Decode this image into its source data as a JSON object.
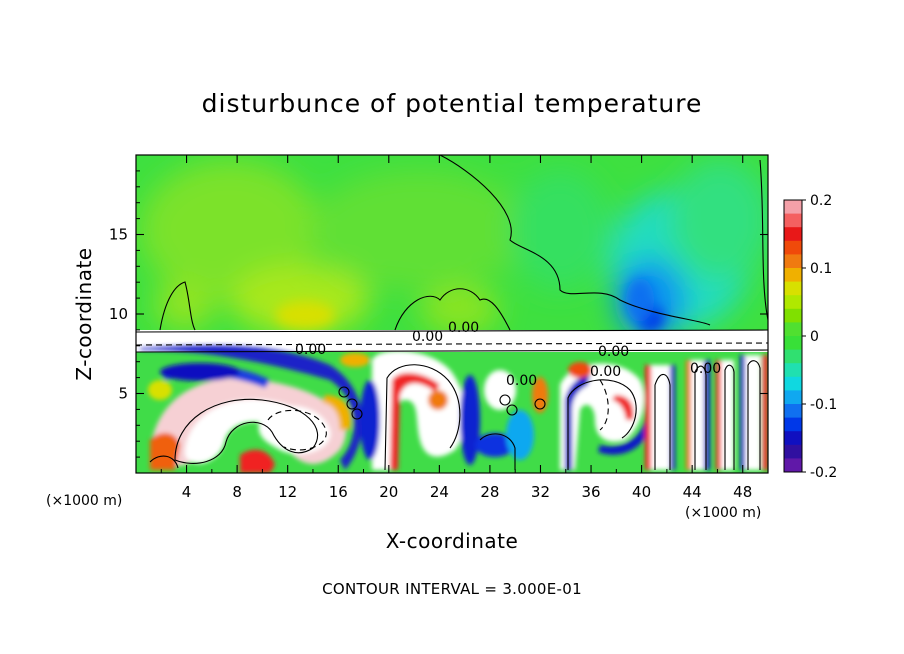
{
  "chart_data": {
    "type": "heatmap",
    "title": "disturbunce of potential temperature",
    "xlabel": "X-coordinate",
    "ylabel": "Z-coordinate",
    "x_unit": "(×1000 m)",
    "x_unit_right": "(×1000 m)",
    "xlim": [
      0,
      50
    ],
    "ylim": [
      0,
      20
    ],
    "x_ticks": [
      4,
      8,
      12,
      16,
      20,
      24,
      28,
      32,
      36,
      40,
      44,
      48
    ],
    "y_ticks": [
      5,
      10,
      15
    ],
    "colorbar": {
      "range": [
        -0.2,
        0.2
      ],
      "tick_labels": [
        "0.2",
        "0.1",
        "0",
        "-0.1",
        "-0.2"
      ],
      "tick_values": [
        0.2,
        0.1,
        0.0,
        -0.1,
        -0.2
      ],
      "colors": [
        "#f4a0a8",
        "#f46060",
        "#e81818",
        "#f04a0a",
        "#f07a10",
        "#f0b000",
        "#d8e000",
        "#b0e800",
        "#80e000",
        "#50e030",
        "#38e038",
        "#30e070",
        "#20e0b0",
        "#10d8e0",
        "#10a8f0",
        "#1070f0",
        "#0038e8",
        "#1010c0",
        "#3010a0",
        "#6018a8"
      ]
    },
    "contour_interval": "CONTOUR INTERVAL = 3.000E-01",
    "contour_labels": [
      "0.00",
      "0.00",
      "0.00",
      "0.00",
      "0.00",
      "0.00",
      "0.00"
    ]
  }
}
